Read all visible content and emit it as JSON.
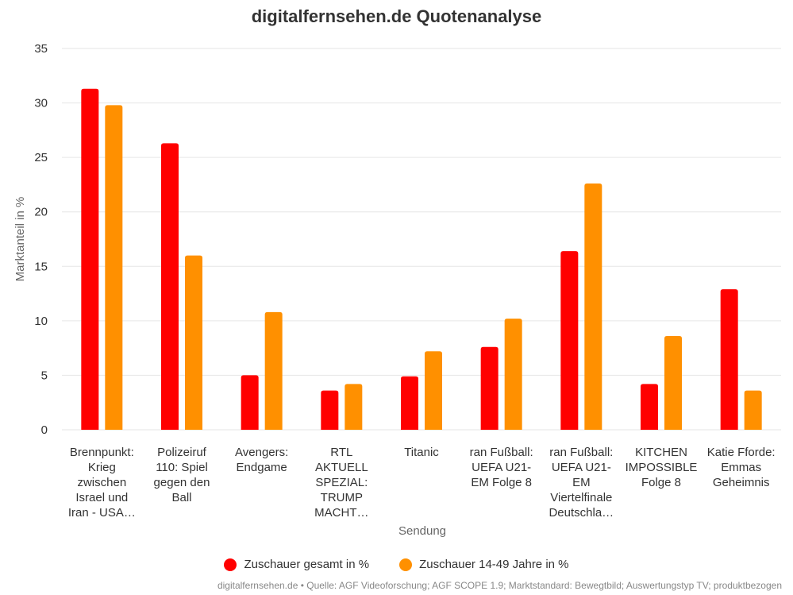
{
  "chart_data": {
    "type": "bar",
    "title": "digitalfernsehen.de Quotenanalyse",
    "xlabel": "Sendung",
    "ylabel": "Marktanteil in %",
    "ylim": [
      0,
      35
    ],
    "yticks": [
      0,
      5,
      10,
      15,
      20,
      25,
      30,
      35
    ],
    "grid": true,
    "legend_position": "bottom",
    "categories": [
      [
        "Brennpunkt:",
        "Krieg",
        "zwischen",
        "Israel und",
        "Iran - USA…"
      ],
      [
        "Polizeiruf",
        "110: Spiel",
        "gegen den",
        "Ball"
      ],
      [
        "Avengers:",
        "Endgame"
      ],
      [
        "RTL",
        "AKTUELL",
        "SPEZIAL:",
        "TRUMP",
        "MACHT…"
      ],
      [
        "Titanic"
      ],
      [
        "ran Fußball:",
        "UEFA U21-",
        "EM Folge 8"
      ],
      [
        "ran Fußball:",
        "UEFA U21-",
        "EM",
        "Viertelfinale",
        "Deutschla…"
      ],
      [
        "KITCHEN",
        "IMPOSSIBLE",
        "Folge 8"
      ],
      [
        "Katie Fforde:",
        "Emmas",
        "Geheimnis"
      ]
    ],
    "series": [
      {
        "name": "Zuschauer gesamt in %",
        "color": "#ff0000",
        "values": [
          31.3,
          26.3,
          5.0,
          3.6,
          4.9,
          7.6,
          16.4,
          4.2,
          12.9
        ]
      },
      {
        "name": "Zuschauer 14-49 Jahre in %",
        "color": "#ff9000",
        "values": [
          29.8,
          16.0,
          10.8,
          4.2,
          7.2,
          10.2,
          22.6,
          8.6,
          3.6
        ]
      }
    ]
  },
  "source": "digitalfernsehen.de • Quelle: AGF Videoforschung; AGF SCOPE 1.9; Marktstandard: Bewegtbild; Auswertungstyp TV; produktbezogen"
}
